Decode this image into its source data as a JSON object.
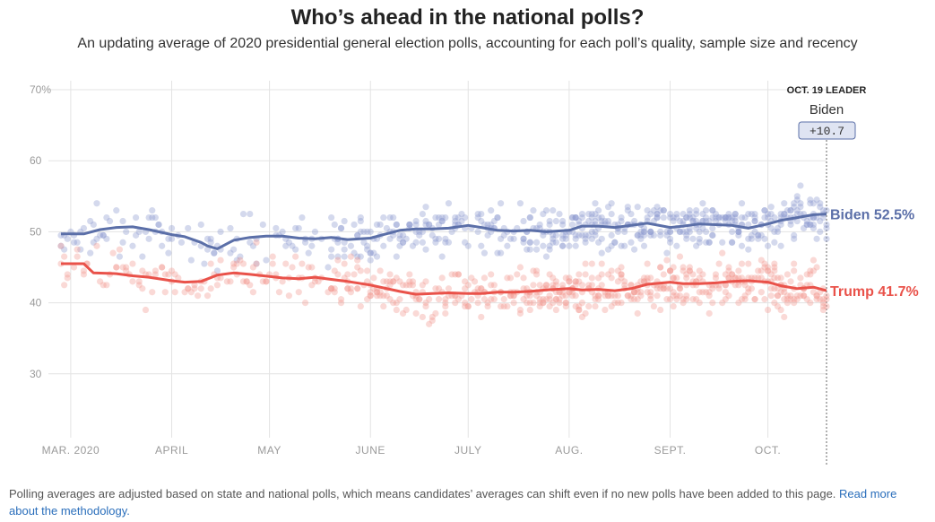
{
  "page": {
    "title": "Who’s ahead in the national polls?",
    "subtitle": "An updating average of 2020 presidential general election polls, accounting for each poll’s quality, sample size and recency",
    "footnote_text": "Polling averages are adjusted based on state and national polls, which means candidates’ averages can shift even if no new polls have been added to this page. ",
    "footnote_link": "Read more about the methodology."
  },
  "chart_data": {
    "type": "line",
    "title": "Who’s ahead in the national polls?",
    "subtitle": "An updating average of 2020 presidential general election polls, accounting for each poll’s quality, sample size and recency",
    "xlabel": "",
    "ylabel": "",
    "x_start": "2020-02-27",
    "x_end": "2020-10-19",
    "ylim": [
      20,
      70
    ],
    "y_ticks": [
      30,
      40,
      50,
      60,
      70
    ],
    "y_tick_labels": [
      "30",
      "40",
      "50",
      "60",
      "70%"
    ],
    "x_ticks": [
      {
        "date": "2020-03-01",
        "label": "MAR. 2020"
      },
      {
        "date": "2020-04-01",
        "label": "APRIL"
      },
      {
        "date": "2020-05-01",
        "label": "MAY"
      },
      {
        "date": "2020-06-01",
        "label": "JUNE"
      },
      {
        "date": "2020-07-01",
        "label": "JULY"
      },
      {
        "date": "2020-08-01",
        "label": "AUG."
      },
      {
        "date": "2020-09-01",
        "label": "SEPT."
      },
      {
        "date": "2020-10-01",
        "label": "OCT."
      }
    ],
    "grid": true,
    "leader": {
      "heading": "OCT. 19 LEADER",
      "name": "Biden",
      "margin": "+10.7"
    },
    "series": [
      {
        "name": "Biden",
        "end_label": "Biden 52.5%",
        "color": "#5b6fa8",
        "dot_color": "#8d9bd0",
        "average": [
          [
            "2020-02-27",
            49.7
          ],
          [
            "2020-03-05",
            49.7
          ],
          [
            "2020-03-10",
            50.3
          ],
          [
            "2020-03-15",
            50.6
          ],
          [
            "2020-03-20",
            50.7
          ],
          [
            "2020-03-25",
            50.3
          ],
          [
            "2020-04-01",
            49.6
          ],
          [
            "2020-04-05",
            49.3
          ],
          [
            "2020-04-10",
            48.5
          ],
          [
            "2020-04-12",
            48.0
          ],
          [
            "2020-04-15",
            47.6
          ],
          [
            "2020-04-20",
            48.8
          ],
          [
            "2020-04-25",
            49.2
          ],
          [
            "2020-04-30",
            49.4
          ],
          [
            "2020-05-05",
            49.4
          ],
          [
            "2020-05-10",
            49.1
          ],
          [
            "2020-05-15",
            49.0
          ],
          [
            "2020-05-20",
            49.2
          ],
          [
            "2020-05-25",
            48.9
          ],
          [
            "2020-06-01",
            49.1
          ],
          [
            "2020-06-05",
            49.6
          ],
          [
            "2020-06-10",
            50.2
          ],
          [
            "2020-06-15",
            50.4
          ],
          [
            "2020-06-20",
            50.4
          ],
          [
            "2020-06-25",
            50.5
          ],
          [
            "2020-07-01",
            50.9
          ],
          [
            "2020-07-05",
            50.6
          ],
          [
            "2020-07-10",
            50.2
          ],
          [
            "2020-07-15",
            50.1
          ],
          [
            "2020-07-20",
            50.2
          ],
          [
            "2020-07-25",
            50.0
          ],
          [
            "2020-08-01",
            50.2
          ],
          [
            "2020-08-05",
            50.8
          ],
          [
            "2020-08-10",
            50.8
          ],
          [
            "2020-08-15",
            50.6
          ],
          [
            "2020-08-20",
            50.9
          ],
          [
            "2020-08-25",
            51.2
          ],
          [
            "2020-09-01",
            50.6
          ],
          [
            "2020-09-05",
            50.8
          ],
          [
            "2020-09-10",
            51.1
          ],
          [
            "2020-09-15",
            51.0
          ],
          [
            "2020-09-20",
            50.9
          ],
          [
            "2020-09-25",
            50.5
          ],
          [
            "2020-10-01",
            51.1
          ],
          [
            "2020-10-05",
            51.6
          ],
          [
            "2020-10-10",
            52.0
          ],
          [
            "2020-10-15",
            52.4
          ],
          [
            "2020-10-19",
            52.5
          ]
        ]
      },
      {
        "name": "Trump",
        "end_label": "Trump 41.7%",
        "color": "#e9524a",
        "dot_color": "#f29a94",
        "average": [
          [
            "2020-02-27",
            45.5
          ],
          [
            "2020-03-05",
            45.5
          ],
          [
            "2020-03-08",
            44.2
          ],
          [
            "2020-03-15",
            44.1
          ],
          [
            "2020-03-20",
            43.8
          ],
          [
            "2020-03-25",
            43.6
          ],
          [
            "2020-04-01",
            43.1
          ],
          [
            "2020-04-05",
            42.9
          ],
          [
            "2020-04-10",
            43.0
          ],
          [
            "2020-04-15",
            43.9
          ],
          [
            "2020-04-20",
            44.2
          ],
          [
            "2020-04-25",
            44.0
          ],
          [
            "2020-05-01",
            43.7
          ],
          [
            "2020-05-05",
            43.5
          ],
          [
            "2020-05-10",
            43.4
          ],
          [
            "2020-05-15",
            43.6
          ],
          [
            "2020-05-20",
            43.3
          ],
          [
            "2020-05-25",
            43.0
          ],
          [
            "2020-06-01",
            42.5
          ],
          [
            "2020-06-05",
            42.1
          ],
          [
            "2020-06-10",
            41.6
          ],
          [
            "2020-06-15",
            41.2
          ],
          [
            "2020-06-20",
            41.3
          ],
          [
            "2020-06-25",
            41.4
          ],
          [
            "2020-07-01",
            41.3
          ],
          [
            "2020-07-05",
            41.3
          ],
          [
            "2020-07-10",
            41.5
          ],
          [
            "2020-07-15",
            41.5
          ],
          [
            "2020-07-20",
            41.6
          ],
          [
            "2020-07-25",
            41.8
          ],
          [
            "2020-08-01",
            42.0
          ],
          [
            "2020-08-05",
            41.8
          ],
          [
            "2020-08-10",
            41.9
          ],
          [
            "2020-08-15",
            41.7
          ],
          [
            "2020-08-20",
            42.0
          ],
          [
            "2020-08-25",
            42.6
          ],
          [
            "2020-09-01",
            42.9
          ],
          [
            "2020-09-05",
            42.7
          ],
          [
            "2020-09-10",
            42.7
          ],
          [
            "2020-09-15",
            42.8
          ],
          [
            "2020-09-20",
            43.0
          ],
          [
            "2020-09-25",
            43.1
          ],
          [
            "2020-10-01",
            42.9
          ],
          [
            "2020-10-05",
            42.4
          ],
          [
            "2020-10-10",
            42.0
          ],
          [
            "2020-10-15",
            42.2
          ],
          [
            "2020-10-19",
            41.7
          ]
        ]
      }
    ]
  }
}
